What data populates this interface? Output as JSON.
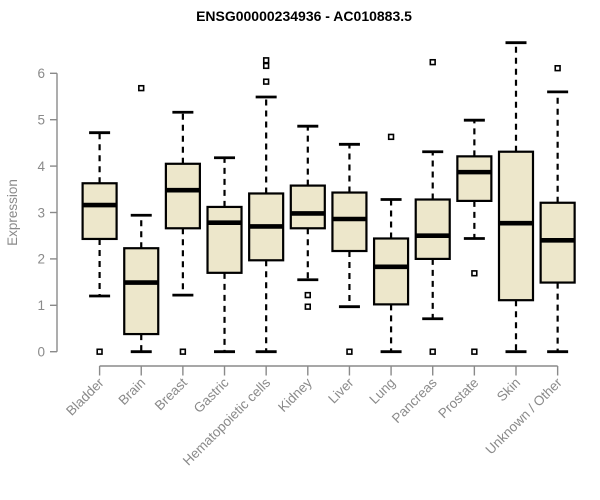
{
  "chart_data": {
    "type": "boxplot",
    "title": "ENSG00000234936 - AC010883.5",
    "ylabel": "Expression",
    "xlabel": "",
    "ylim": [
      0,
      6
    ],
    "yticks": [
      0,
      1,
      2,
      3,
      4,
      5,
      6
    ],
    "grid": false,
    "legend": false,
    "categories": [
      "Bladder",
      "Brain",
      "Breast",
      "Gastric",
      "Hematopoietic cells",
      "Kidney",
      "Liver",
      "Lung",
      "Pancreas",
      "Prostate",
      "Skin",
      "Unknown / Other"
    ],
    "series": [
      {
        "name": "Bladder",
        "whisker_low": 1.2,
        "q1": 2.43,
        "median": 3.16,
        "q3": 3.63,
        "whisker_high": 4.72,
        "outliers": [
          0
        ]
      },
      {
        "name": "Brain",
        "whisker_low": 0,
        "q1": 0.38,
        "median": 1.49,
        "q3": 2.23,
        "whisker_high": 2.94,
        "outliers": [
          5.68
        ]
      },
      {
        "name": "Breast",
        "whisker_low": 1.22,
        "q1": 2.66,
        "median": 3.48,
        "q3": 4.05,
        "whisker_high": 5.16,
        "outliers": [
          0
        ]
      },
      {
        "name": "Gastric",
        "whisker_low": 0,
        "q1": 1.7,
        "median": 2.78,
        "q3": 3.12,
        "whisker_high": 4.18,
        "outliers": []
      },
      {
        "name": "Hematopoietic cells",
        "whisker_low": 0,
        "q1": 1.97,
        "median": 2.7,
        "q3": 3.41,
        "whisker_high": 5.49,
        "outliers": [
          6.28,
          6.16,
          5.82
        ]
      },
      {
        "name": "Kidney",
        "whisker_low": 1.55,
        "q1": 2.66,
        "median": 2.98,
        "q3": 3.58,
        "whisker_high": 4.86,
        "outliers": [
          1.22,
          0.97
        ]
      },
      {
        "name": "Liver",
        "whisker_low": 0.97,
        "q1": 2.17,
        "median": 2.86,
        "q3": 3.43,
        "whisker_high": 4.47,
        "outliers": [
          0
        ]
      },
      {
        "name": "Lung",
        "whisker_low": 0,
        "q1": 1.02,
        "median": 1.83,
        "q3": 2.44,
        "whisker_high": 3.28,
        "outliers": [
          4.63
        ]
      },
      {
        "name": "Pancreas",
        "whisker_low": 0.71,
        "q1": 2.0,
        "median": 2.5,
        "q3": 3.28,
        "whisker_high": 4.31,
        "outliers": [
          6.24,
          0
        ]
      },
      {
        "name": "Prostate",
        "whisker_low": 2.44,
        "q1": 3.25,
        "median": 3.87,
        "q3": 4.21,
        "whisker_high": 4.99,
        "outliers": [
          1.69,
          0
        ]
      },
      {
        "name": "Skin",
        "whisker_low": 0,
        "q1": 1.11,
        "median": 2.77,
        "q3": 4.31,
        "whisker_high": 6.66,
        "outliers": []
      },
      {
        "name": "Unknown / Other",
        "whisker_low": 0,
        "q1": 1.49,
        "median": 2.4,
        "q3": 3.21,
        "whisker_high": 5.6,
        "outliers": [
          6.11
        ]
      }
    ],
    "colors": {
      "box_fill": "#EDE7CB",
      "box_border": "#000000",
      "median": "#000000",
      "whisker": "#000000",
      "outlier_fill": "#FFFFFF",
      "axis": "#8A8A8A",
      "tick_label": "#8A8A8A",
      "title": "#000000",
      "background": "#FFFFFF"
    }
  }
}
